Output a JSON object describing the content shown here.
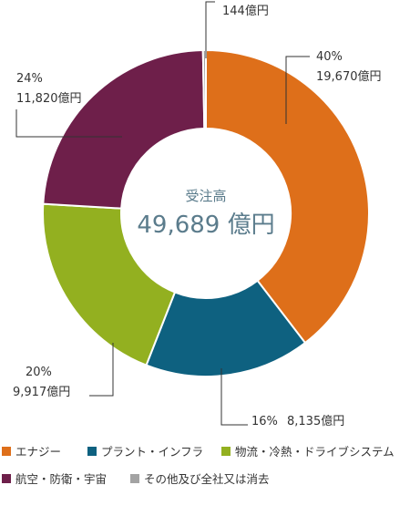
{
  "chart_data": {
    "type": "pie",
    "center": {
      "label": "受注高",
      "value": "49,689 億円"
    },
    "slices": [
      {
        "name": "エナジー",
        "percent_label": "40%",
        "amount_label": "19,670億円",
        "value": 19670,
        "color": "#de6f1a"
      },
      {
        "name": "プラント・インフラ",
        "percent_label": "16%",
        "amount_label": "8,135億円",
        "value": 8135,
        "color": "#0e6180"
      },
      {
        "name": "物流・冷熱・ドライブシステム",
        "percent_label": "20%",
        "amount_label": "9,917億円",
        "value": 9917,
        "color": "#93b020"
      },
      {
        "name": "航空・防衛・宇宙",
        "percent_label": "24%",
        "amount_label": "11,820億円",
        "value": 11820,
        "color": "#6e1f4a"
      },
      {
        "name": "その他及び全社又は消去",
        "percent_label": "",
        "amount_label": "144億円",
        "value": 144,
        "color": "#a3a3a3"
      }
    ]
  }
}
